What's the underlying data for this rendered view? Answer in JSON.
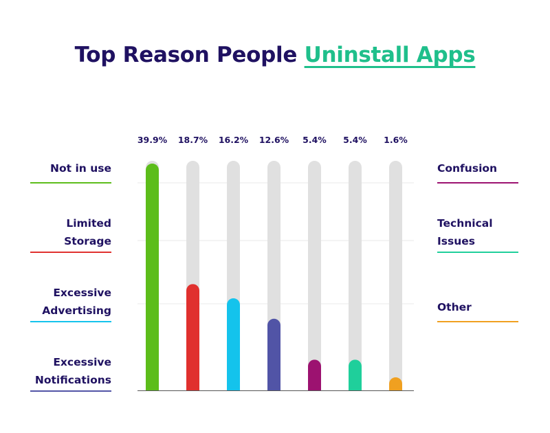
{
  "title": {
    "part1": "Top Reason People",
    "part2": "Uninstall Apps"
  },
  "chart_data": {
    "type": "bar",
    "categories": [
      "Not in use",
      "Limited Storage",
      "Excessive Advertising",
      "Excessive Notifications",
      "Confusion",
      "Technical Issues",
      "Other"
    ],
    "values": [
      39.9,
      18.7,
      16.2,
      12.6,
      5.4,
      5.4,
      1.6
    ],
    "value_labels": [
      "39.9%",
      "18.7%",
      "16.2%",
      "12.6%",
      "5.4%",
      "5.4%",
      "1.6%"
    ],
    "colors": [
      "#5cbd1a",
      "#e0302e",
      "#14c3ec",
      "#5154a6",
      "#9c1270",
      "#1fcf9b",
      "#f0a020"
    ],
    "track_color": "#e0e0e0",
    "gridlines": true,
    "legend_placement": "left-and-right"
  },
  "legend": {
    "left": [
      {
        "lines": [
          "Not in use"
        ],
        "color": "#5cbd1a"
      },
      {
        "lines": [
          "Limited",
          "Storage"
        ],
        "color": "#e0302e"
      },
      {
        "lines": [
          "Excessive",
          "Advertising"
        ],
        "color": "#14c3ec"
      },
      {
        "lines": [
          "Excessive",
          "Notifications"
        ],
        "color": "#5154a6"
      }
    ],
    "right": [
      {
        "lines": [
          "Confusion"
        ],
        "color": "#9c1270"
      },
      {
        "lines": [
          "Technical",
          "Issues"
        ],
        "color": "#1fcf9b"
      },
      {
        "lines": [
          "Other"
        ],
        "color": "#f0a020"
      }
    ]
  }
}
